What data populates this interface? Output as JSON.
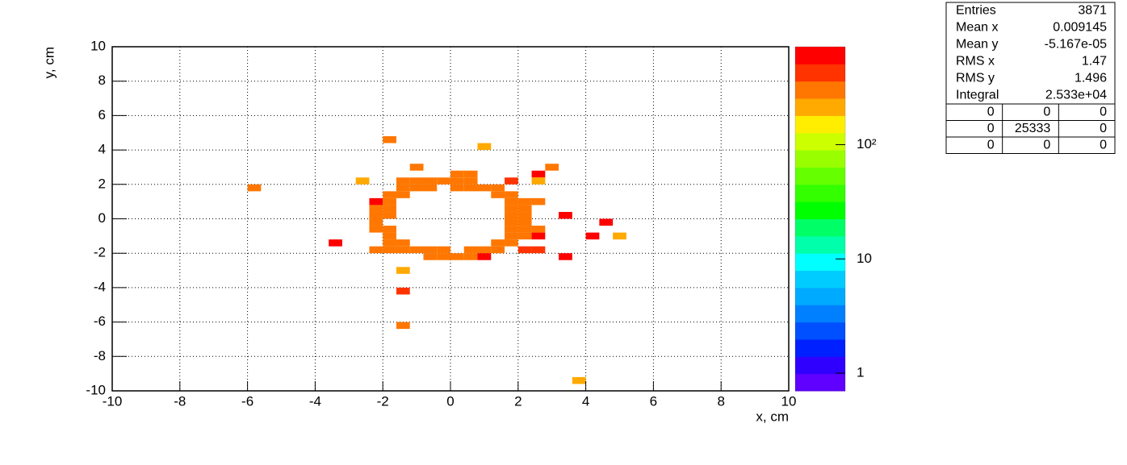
{
  "chart_data": {
    "type": "heatmap",
    "xlabel": "x, cm",
    "ylabel": "y, cm",
    "xlim": [
      -10,
      10
    ],
    "ylim": [
      -10,
      10
    ],
    "xticks": [
      -10,
      -8,
      -6,
      -4,
      -2,
      0,
      2,
      4,
      6,
      8,
      10
    ],
    "yticks": [
      -10,
      -8,
      -6,
      -4,
      -2,
      0,
      2,
      4,
      6,
      8,
      10
    ],
    "grid": true,
    "zscale": "log",
    "zlim": [
      0.7,
      720
    ],
    "zticks": [
      1,
      10,
      {
        "value": 100,
        "label": "10²"
      }
    ],
    "palette": [
      "#6000ff",
      "#3000ff",
      "#0020ff",
      "#0050ff",
      "#0080ff",
      "#00aaff",
      "#00ccff",
      "#00ffff",
      "#00ffaa",
      "#00ff66",
      "#00ff00",
      "#33ff00",
      "#66ff00",
      "#99ff00",
      "#ccff00",
      "#ffee00",
      "#ffaa00",
      "#ff7700",
      "#ff3300",
      "#ff0000"
    ],
    "cells": [
      {
        "x": [
          -2.0,
          -1.6
        ],
        "y": [
          4.4,
          4.8
        ],
        "value": 300
      },
      {
        "x": [
          0.8,
          1.2
        ],
        "y": [
          4.0,
          4.4
        ],
        "value": 210
      },
      {
        "x": [
          -1.2,
          -0.8
        ],
        "y": [
          2.8,
          3.2
        ],
        "value": 300
      },
      {
        "x": [
          2.8,
          3.2
        ],
        "y": [
          2.8,
          3.2
        ],
        "value": 300
      },
      {
        "x": [
          0.0,
          0.4
        ],
        "y": [
          2.4,
          2.8
        ],
        "value": 300
      },
      {
        "x": [
          0.4,
          0.8
        ],
        "y": [
          2.4,
          2.8
        ],
        "value": 300
      },
      {
        "x": [
          2.4,
          2.8
        ],
        "y": [
          2.4,
          2.8
        ],
        "value": 600
      },
      {
        "x": [
          -2.8,
          -2.4
        ],
        "y": [
          2.0,
          2.4
        ],
        "value": 210
      },
      {
        "x": [
          -1.6,
          -1.2
        ],
        "y": [
          2.0,
          2.4
        ],
        "value": 300
      },
      {
        "x": [
          -1.2,
          -0.8
        ],
        "y": [
          2.0,
          2.4
        ],
        "value": 300
      },
      {
        "x": [
          -0.8,
          -0.4
        ],
        "y": [
          2.0,
          2.4
        ],
        "value": 300
      },
      {
        "x": [
          -0.4,
          0.0
        ],
        "y": [
          2.0,
          2.4
        ],
        "value": 300
      },
      {
        "x": [
          0.0,
          0.4
        ],
        "y": [
          2.0,
          2.4
        ],
        "value": 300
      },
      {
        "x": [
          0.4,
          0.8
        ],
        "y": [
          2.0,
          2.4
        ],
        "value": 300
      },
      {
        "x": [
          1.6,
          2.0
        ],
        "y": [
          2.0,
          2.4
        ],
        "value": 430
      },
      {
        "x": [
          2.4,
          2.8
        ],
        "y": [
          2.0,
          2.4
        ],
        "value": 210
      },
      {
        "x": [
          -6.0,
          -5.6
        ],
        "y": [
          1.6,
          2.0
        ],
        "value": 300
      },
      {
        "x": [
          -1.6,
          -1.2
        ],
        "y": [
          1.6,
          2.0
        ],
        "value": 300
      },
      {
        "x": [
          -1.2,
          -0.8
        ],
        "y": [
          1.6,
          2.0
        ],
        "value": 300
      },
      {
        "x": [
          -0.8,
          -0.4
        ],
        "y": [
          1.6,
          2.0
        ],
        "value": 300
      },
      {
        "x": [
          0.0,
          0.4
        ],
        "y": [
          1.6,
          2.0
        ],
        "value": 300
      },
      {
        "x": [
          0.4,
          0.8
        ],
        "y": [
          1.6,
          2.0
        ],
        "value": 300
      },
      {
        "x": [
          0.8,
          1.2
        ],
        "y": [
          1.6,
          2.0
        ],
        "value": 300
      },
      {
        "x": [
          1.2,
          1.6
        ],
        "y": [
          1.6,
          2.0
        ],
        "value": 300
      },
      {
        "x": [
          -2.0,
          -1.6
        ],
        "y": [
          1.2,
          1.6
        ],
        "value": 300
      },
      {
        "x": [
          -1.6,
          -1.2
        ],
        "y": [
          1.2,
          1.6
        ],
        "value": 300
      },
      {
        "x": [
          1.2,
          1.6
        ],
        "y": [
          1.2,
          1.6
        ],
        "value": 300
      },
      {
        "x": [
          1.6,
          2.0
        ],
        "y": [
          1.2,
          1.6
        ],
        "value": 300
      },
      {
        "x": [
          -2.4,
          -2.0
        ],
        "y": [
          0.8,
          1.2
        ],
        "value": 600
      },
      {
        "x": [
          -2.0,
          -1.6
        ],
        "y": [
          0.8,
          1.2
        ],
        "value": 300
      },
      {
        "x": [
          1.6,
          2.0
        ],
        "y": [
          0.8,
          1.2
        ],
        "value": 300
      },
      {
        "x": [
          2.0,
          2.4
        ],
        "y": [
          0.8,
          1.2
        ],
        "value": 300
      },
      {
        "x": [
          2.4,
          2.8
        ],
        "y": [
          0.8,
          1.2
        ],
        "value": 300
      },
      {
        "x": [
          -2.4,
          -2.0
        ],
        "y": [
          0.4,
          0.8
        ],
        "value": 300
      },
      {
        "x": [
          -2.0,
          -1.6
        ],
        "y": [
          0.4,
          0.8
        ],
        "value": 300
      },
      {
        "x": [
          1.6,
          2.0
        ],
        "y": [
          0.4,
          0.8
        ],
        "value": 300
      },
      {
        "x": [
          2.0,
          2.4
        ],
        "y": [
          0.4,
          0.8
        ],
        "value": 300
      },
      {
        "x": [
          -2.4,
          -2.0
        ],
        "y": [
          0.0,
          0.4
        ],
        "value": 300
      },
      {
        "x": [
          -2.0,
          -1.6
        ],
        "y": [
          0.0,
          0.4
        ],
        "value": 300
      },
      {
        "x": [
          1.6,
          2.0
        ],
        "y": [
          0.0,
          0.4
        ],
        "value": 300
      },
      {
        "x": [
          2.0,
          2.4
        ],
        "y": [
          0.0,
          0.4
        ],
        "value": 300
      },
      {
        "x": [
          3.2,
          3.6
        ],
        "y": [
          0.0,
          0.4
        ],
        "value": 600
      },
      {
        "x": [
          -2.4,
          -2.0
        ],
        "y": [
          -0.4,
          0.0
        ],
        "value": 300
      },
      {
        "x": [
          1.6,
          2.0
        ],
        "y": [
          -0.4,
          0.0
        ],
        "value": 300
      },
      {
        "x": [
          2.0,
          2.4
        ],
        "y": [
          -0.4,
          0.0
        ],
        "value": 300
      },
      {
        "x": [
          4.4,
          4.8
        ],
        "y": [
          -0.4,
          0.0
        ],
        "value": 600
      },
      {
        "x": [
          -2.4,
          -2.0
        ],
        "y": [
          -0.8,
          -0.4
        ],
        "value": 300
      },
      {
        "x": [
          -2.0,
          -1.6
        ],
        "y": [
          -0.8,
          -0.4
        ],
        "value": 300
      },
      {
        "x": [
          1.6,
          2.0
        ],
        "y": [
          -0.8,
          -0.4
        ],
        "value": 300
      },
      {
        "x": [
          2.0,
          2.4
        ],
        "y": [
          -0.8,
          -0.4
        ],
        "value": 300
      },
      {
        "x": [
          2.4,
          2.8
        ],
        "y": [
          -0.8,
          -0.4
        ],
        "value": 300
      },
      {
        "x": [
          -2.0,
          -1.6
        ],
        "y": [
          -1.2,
          -0.8
        ],
        "value": 300
      },
      {
        "x": [
          1.6,
          2.0
        ],
        "y": [
          -1.2,
          -0.8
        ],
        "value": 300
      },
      {
        "x": [
          2.0,
          2.4
        ],
        "y": [
          -1.2,
          -0.8
        ],
        "value": 300
      },
      {
        "x": [
          2.4,
          2.8
        ],
        "y": [
          -1.2,
          -0.8
        ],
        "value": 600
      },
      {
        "x": [
          4.0,
          4.4
        ],
        "y": [
          -1.2,
          -0.8
        ],
        "value": 600
      },
      {
        "x": [
          4.8,
          5.2
        ],
        "y": [
          -1.2,
          -0.8
        ],
        "value": 210
      },
      {
        "x": [
          -3.6,
          -3.2
        ],
        "y": [
          -1.6,
          -1.2
        ],
        "value": 600
      },
      {
        "x": [
          -2.0,
          -1.6
        ],
        "y": [
          -1.6,
          -1.2
        ],
        "value": 300
      },
      {
        "x": [
          -1.6,
          -1.2
        ],
        "y": [
          -1.6,
          -1.2
        ],
        "value": 300
      },
      {
        "x": [
          1.2,
          1.6
        ],
        "y": [
          -1.6,
          -1.2
        ],
        "value": 300
      },
      {
        "x": [
          1.6,
          2.0
        ],
        "y": [
          -1.6,
          -1.2
        ],
        "value": 300
      },
      {
        "x": [
          -2.4,
          -2.0
        ],
        "y": [
          -2.0,
          -1.6
        ],
        "value": 300
      },
      {
        "x": [
          -2.0,
          -1.6
        ],
        "y": [
          -2.0,
          -1.6
        ],
        "value": 300
      },
      {
        "x": [
          -1.6,
          -1.2
        ],
        "y": [
          -2.0,
          -1.6
        ],
        "value": 300
      },
      {
        "x": [
          -1.2,
          -0.8
        ],
        "y": [
          -2.0,
          -1.6
        ],
        "value": 300
      },
      {
        "x": [
          -0.8,
          -0.4
        ],
        "y": [
          -2.0,
          -1.6
        ],
        "value": 300
      },
      {
        "x": [
          -0.4,
          0.0
        ],
        "y": [
          -2.0,
          -1.6
        ],
        "value": 300
      },
      {
        "x": [
          0.4,
          0.8
        ],
        "y": [
          -2.0,
          -1.6
        ],
        "value": 300
      },
      {
        "x": [
          0.8,
          1.2
        ],
        "y": [
          -2.0,
          -1.6
        ],
        "value": 300
      },
      {
        "x": [
          1.2,
          1.6
        ],
        "y": [
          -2.0,
          -1.6
        ],
        "value": 300
      },
      {
        "x": [
          2.0,
          2.4
        ],
        "y": [
          -2.0,
          -1.6
        ],
        "value": 430
      },
      {
        "x": [
          2.4,
          2.8
        ],
        "y": [
          -2.0,
          -1.6
        ],
        "value": 430
      },
      {
        "x": [
          -0.8,
          -0.4
        ],
        "y": [
          -2.4,
          -2.0
        ],
        "value": 300
      },
      {
        "x": [
          -0.4,
          0.0
        ],
        "y": [
          -2.4,
          -2.0
        ],
        "value": 300
      },
      {
        "x": [
          0.0,
          0.4
        ],
        "y": [
          -2.4,
          -2.0
        ],
        "value": 300
      },
      {
        "x": [
          0.4,
          0.8
        ],
        "y": [
          -2.4,
          -2.0
        ],
        "value": 300
      },
      {
        "x": [
          0.8,
          1.2
        ],
        "y": [
          -2.4,
          -2.0
        ],
        "value": 600
      },
      {
        "x": [
          3.2,
          3.6
        ],
        "y": [
          -2.4,
          -2.0
        ],
        "value": 600
      },
      {
        "x": [
          -1.6,
          -1.2
        ],
        "y": [
          -3.2,
          -2.8
        ],
        "value": 210
      },
      {
        "x": [
          -1.6,
          -1.2
        ],
        "y": [
          -4.4,
          -4.0
        ],
        "value": 430
      },
      {
        "x": [
          -1.6,
          -1.2
        ],
        "y": [
          -6.4,
          -6.0
        ],
        "value": 300
      },
      {
        "x": [
          3.6,
          4.0
        ],
        "y": [
          -9.6,
          -9.2
        ],
        "value": 210
      }
    ]
  },
  "stats": {
    "rows": [
      [
        "Entries",
        "3871"
      ],
      [
        "Mean x",
        "0.009145"
      ],
      [
        "Mean y",
        "-5.167e-05"
      ],
      [
        "RMS x",
        "1.47"
      ],
      [
        "RMS y",
        "1.496"
      ],
      [
        "Integral",
        "2.533e+04"
      ]
    ],
    "grid": [
      [
        "0",
        "0",
        "0"
      ],
      [
        "0",
        "25333",
        "0"
      ],
      [
        "0",
        "0",
        "0"
      ]
    ]
  }
}
